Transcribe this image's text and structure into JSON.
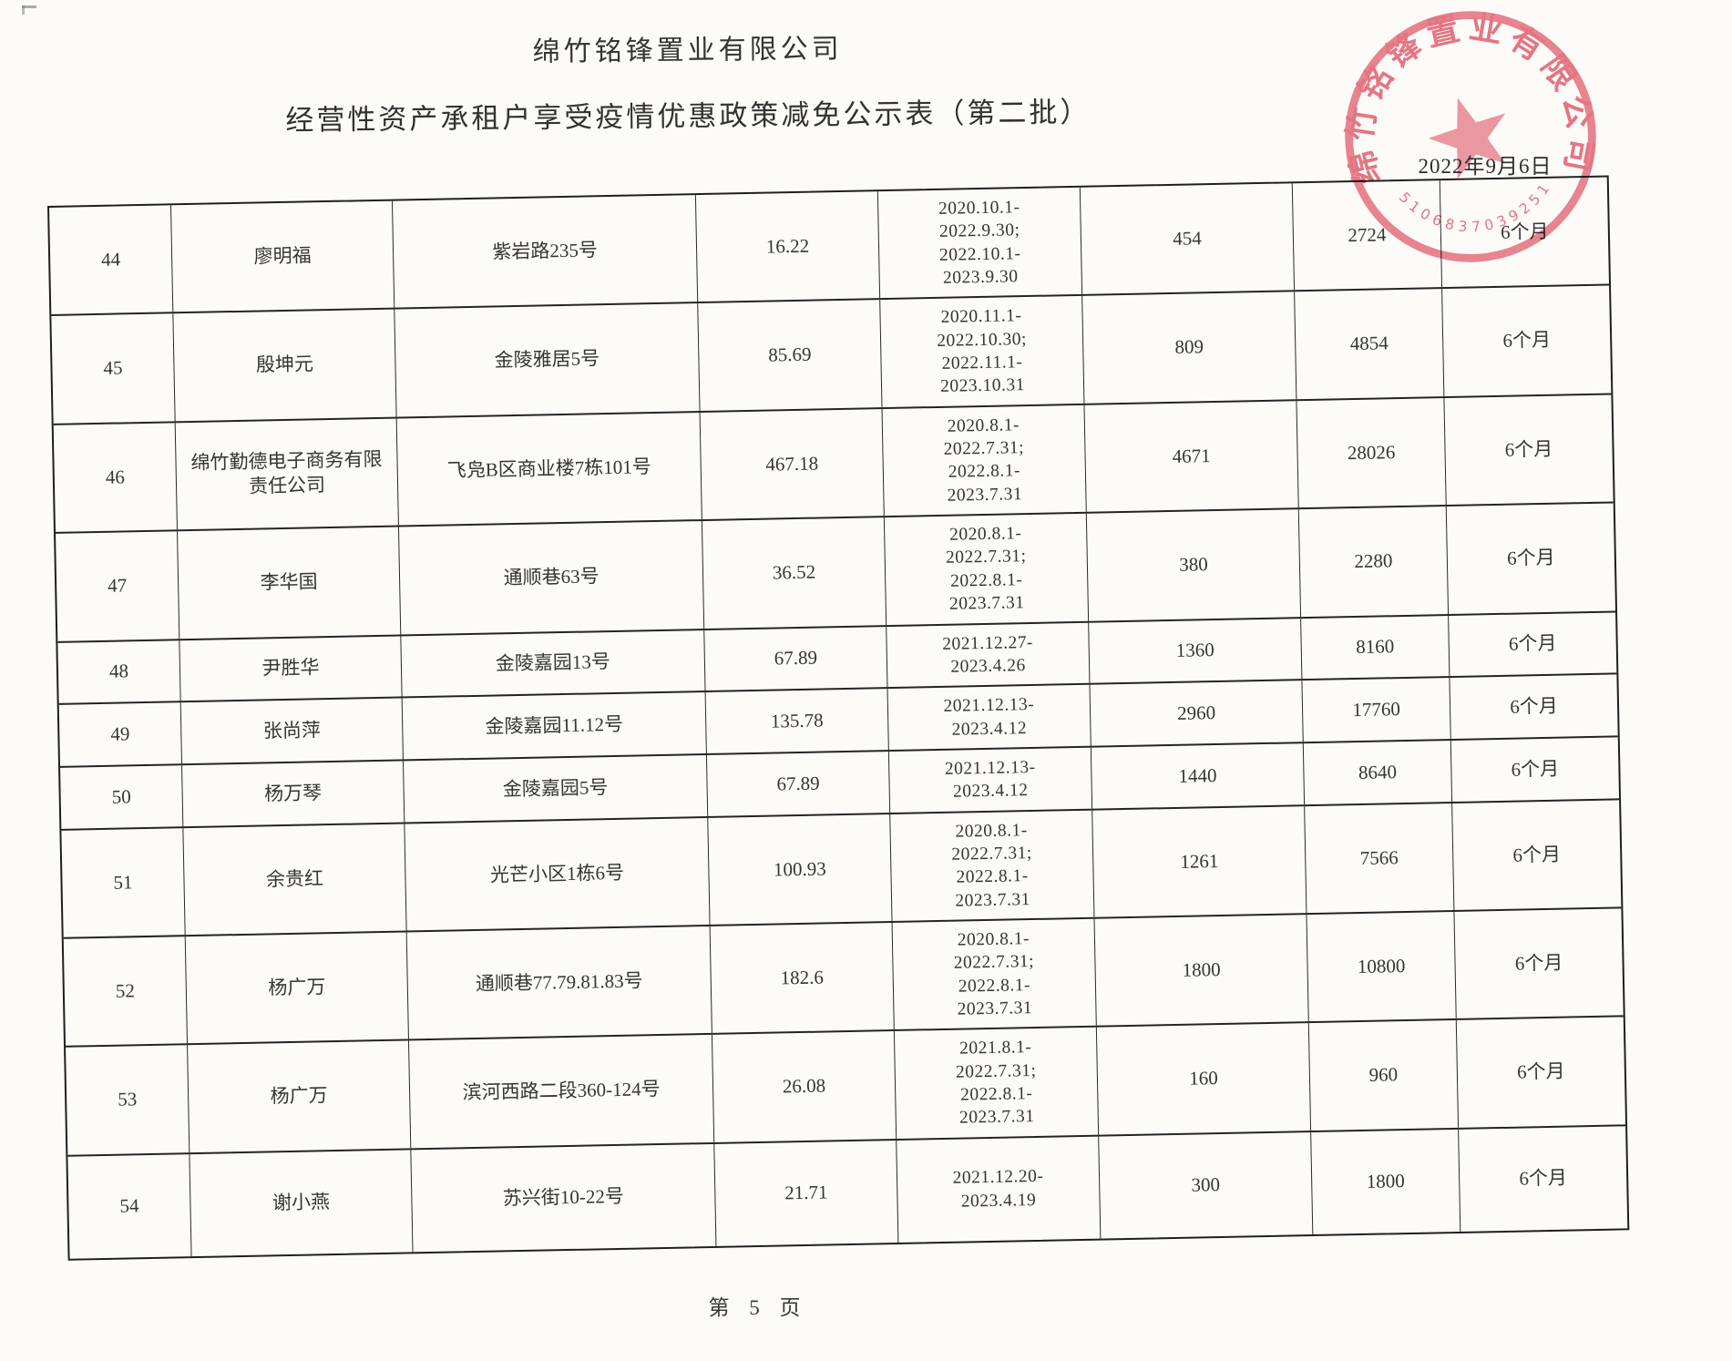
{
  "header": {
    "company": "绵竹铭锋置业有限公司",
    "title": "经营性资产承租户享受疫情优惠政策减免公示表（第二批）"
  },
  "stamp": {
    "arc_text": "绵竹铭锋置业有限公司",
    "serial": "5106837039251",
    "date": "2022年9月6日",
    "color": "#e25a6d"
  },
  "table": {
    "rows": [
      {
        "no": "44",
        "name": "廖明福",
        "address": "紫岩路235号",
        "area": "16.22",
        "period_lines": [
          "2020.10.1-",
          "2022.9.30;",
          "2022.10.1-",
          "2023.9.30"
        ],
        "monthly": "454",
        "total": "2724",
        "duration": "6个月"
      },
      {
        "no": "45",
        "name": "殷坤元",
        "address": "金陵雅居5号",
        "area": "85.69",
        "period_lines": [
          "2020.11.1-",
          "2022.10.30;",
          "2022.11.1-",
          "2023.10.31"
        ],
        "monthly": "809",
        "total": "4854",
        "duration": "6个月"
      },
      {
        "no": "46",
        "name": "绵竹勤德电子商务有限责任公司",
        "address": "飞凫B区商业楼7栋101号",
        "area": "467.18",
        "period_lines": [
          "2020.8.1-",
          "2022.7.31;",
          "2022.8.1-",
          "2023.7.31"
        ],
        "monthly": "4671",
        "total": "28026",
        "duration": "6个月"
      },
      {
        "no": "47",
        "name": "李华国",
        "address": "通顺巷63号",
        "area": "36.52",
        "period_lines": [
          "2020.8.1-",
          "2022.7.31;",
          "2022.8.1-",
          "2023.7.31"
        ],
        "monthly": "380",
        "total": "2280",
        "duration": "6个月"
      },
      {
        "no": "48",
        "name": "尹胜华",
        "address": "金陵嘉园13号",
        "area": "67.89",
        "period_lines": [
          "2021.12.27-",
          "2023.4.26"
        ],
        "monthly": "1360",
        "total": "8160",
        "duration": "6个月"
      },
      {
        "no": "49",
        "name": "张尚萍",
        "address": "金陵嘉园11.12号",
        "area": "135.78",
        "period_lines": [
          "2021.12.13-",
          "2023.4.12"
        ],
        "monthly": "2960",
        "total": "17760",
        "duration": "6个月"
      },
      {
        "no": "50",
        "name": "杨万琴",
        "address": "金陵嘉园5号",
        "area": "67.89",
        "period_lines": [
          "2021.12.13-",
          "2023.4.12"
        ],
        "monthly": "1440",
        "total": "8640",
        "duration": "6个月"
      },
      {
        "no": "51",
        "name": "余贵红",
        "address": "光芒小区1栋6号",
        "area": "100.93",
        "period_lines": [
          "2020.8.1-",
          "2022.7.31;",
          "2022.8.1-",
          "2023.7.31"
        ],
        "monthly": "1261",
        "total": "7566",
        "duration": "6个月"
      },
      {
        "no": "52",
        "name": "杨广万",
        "address": "通顺巷77.79.81.83号",
        "area": "182.6",
        "period_lines": [
          "2020.8.1-",
          "2022.7.31;",
          "2022.8.1-",
          "2023.7.31"
        ],
        "monthly": "1800",
        "total": "10800",
        "duration": "6个月"
      },
      {
        "no": "53",
        "name": "杨广万",
        "address": "滨河西路二段360-124号",
        "area": "26.08",
        "period_lines": [
          "2021.8.1-",
          "2022.7.31;",
          "2022.8.1-",
          "2023.7.31"
        ],
        "monthly": "160",
        "total": "960",
        "duration": "6个月"
      },
      {
        "no": "54",
        "name": "谢小燕",
        "address": "苏兴街10-22号",
        "area": "21.71",
        "period_lines": [
          "2021.12.20-",
          "2023.4.19"
        ],
        "monthly": "300",
        "total": "1800",
        "duration": "6个月"
      }
    ]
  },
  "footer": {
    "page": "第 5 页"
  }
}
